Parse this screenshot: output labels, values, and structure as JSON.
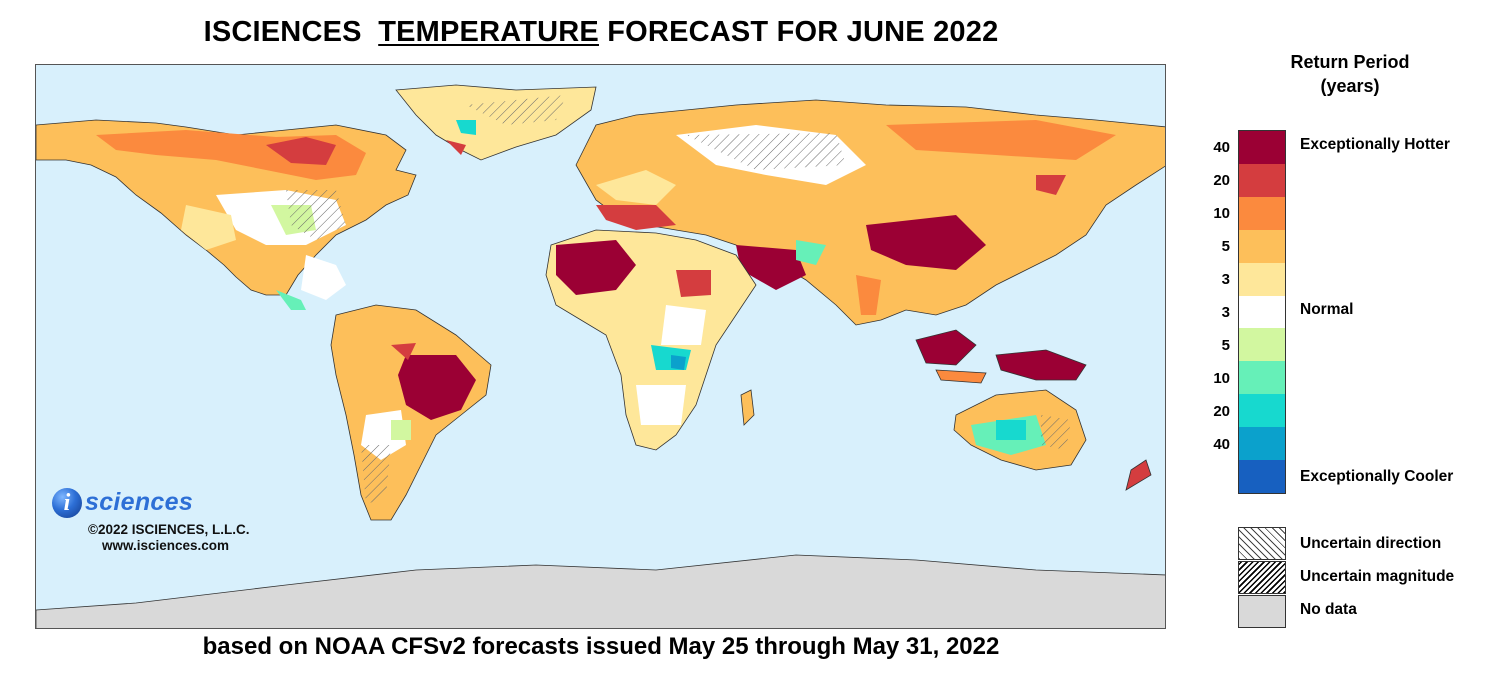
{
  "title": {
    "part1": "ISCIENCES",
    "part2": "TEMPERATURE",
    "part3": "FORECAST FOR JUNE 2022"
  },
  "subtitle": "based on NOAA CFSv2 forecasts issued May 25 through May 31, 2022",
  "logo": {
    "mark": "i",
    "word": "sciences",
    "copyright": "©2022 ISCIENCES, L.L.C.",
    "url": "www.isciences.com"
  },
  "legend": {
    "title_line1": "Return Period",
    "title_line2": "(years)",
    "swatches": [
      {
        "color": "#9b0034",
        "class": "hotter-40"
      },
      {
        "color": "#d43d3f",
        "class": "hotter-20"
      },
      {
        "color": "#fb8a3e",
        "class": "hotter-10"
      },
      {
        "color": "#fdbf5a",
        "class": "hotter-5"
      },
      {
        "color": "#fee79a",
        "class": "hotter-3"
      },
      {
        "color": "#ffffff",
        "class": "normal"
      },
      {
        "color": "#d2f7a0",
        "class": "cooler-3"
      },
      {
        "color": "#66f0b8",
        "class": "cooler-5"
      },
      {
        "color": "#17d9cf",
        "class": "cooler-10"
      },
      {
        "color": "#0ba1cc",
        "class": "cooler-20"
      },
      {
        "color": "#1760c0",
        "class": "cooler-40"
      }
    ],
    "ticks": [
      "40",
      "20",
      "10",
      "5",
      "3",
      "3",
      "5",
      "10",
      "20",
      "40"
    ],
    "label_hot": "Exceptionally Hotter",
    "label_normal": "Normal",
    "label_cool": "Exceptionally Cooler",
    "keys": [
      {
        "kind": "hatch-a",
        "label": "Uncertain direction"
      },
      {
        "kind": "hatch-b",
        "label": "Uncertain magnitude"
      },
      {
        "kind": "nodata",
        "label": "No data"
      }
    ]
  },
  "map": {
    "ocean_color": "#d8f0fc",
    "land_base_color": "#fdbf5a",
    "no_data_color": "#d9d9d9"
  }
}
